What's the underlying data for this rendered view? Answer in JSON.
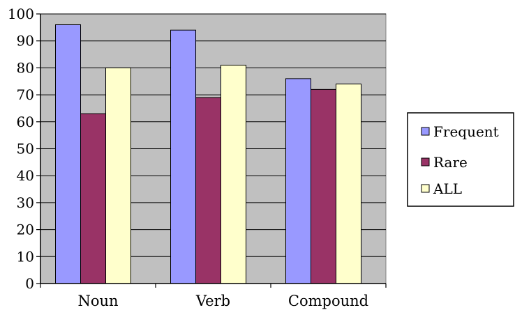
{
  "chart_data": {
    "type": "bar",
    "categories": [
      "Noun",
      "Verb",
      "Compound"
    ],
    "series": [
      {
        "name": "Frequent",
        "values": [
          96,
          94,
          76
        ],
        "color": "#9999ff"
      },
      {
        "name": "Rare",
        "values": [
          63,
          69,
          72
        ],
        "color": "#993366"
      },
      {
        "name": "ALL",
        "values": [
          80,
          81,
          74
        ],
        "color": "#ffffcc"
      }
    ],
    "yticks": [
      "0",
      "10",
      "20",
      "30",
      "40",
      "50",
      "60",
      "70",
      "80",
      "90",
      "100"
    ],
    "ylim": [
      0,
      100
    ],
    "grid": true,
    "plot_background": "#c0c0c0",
    "legend_position": "right"
  }
}
